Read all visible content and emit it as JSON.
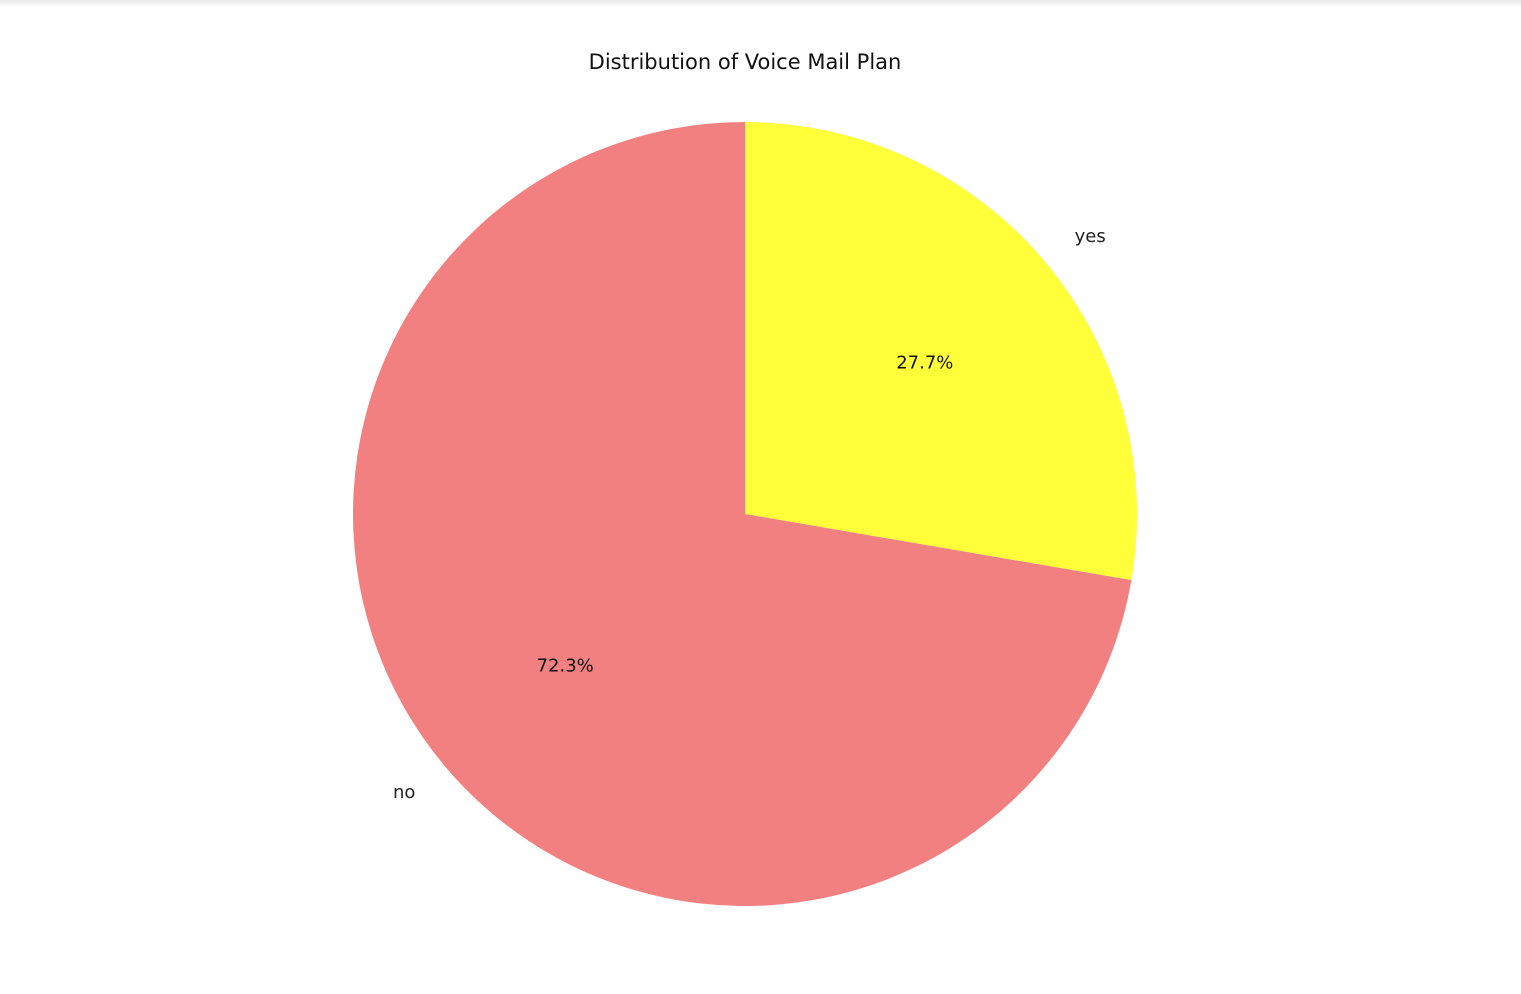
{
  "chart_data": {
    "type": "pie",
    "title": "Distribution of Voice Mail Plan",
    "start_angle_deg": 90,
    "direction": "clockwise",
    "slices": [
      {
        "label": "yes",
        "value": 27.7,
        "pct_label": "27.7%",
        "color": "#ffff3a"
      },
      {
        "label": "no",
        "value": 72.3,
        "pct_label": "72.3%",
        "color": "#f28080"
      }
    ]
  }
}
